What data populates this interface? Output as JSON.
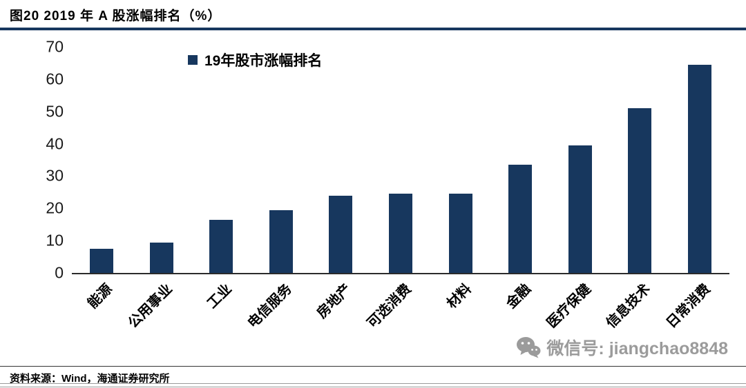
{
  "header": {
    "title": "图20 2019 年 A 股涨幅排名（%）"
  },
  "chart_data": {
    "type": "bar",
    "title": "图20 2019 年 A 股涨幅排名（%）",
    "legend": "19年股市涨幅排名",
    "legend_position": "top-center",
    "categories": [
      "能源",
      "公用事业",
      "工业",
      "电信服务",
      "房地产",
      "可选消费",
      "材料",
      "金融",
      "医疗保健",
      "信息技术",
      "日常消费"
    ],
    "values": [
      7.5,
      9.5,
      16.5,
      19.5,
      24,
      24.5,
      24.5,
      33.5,
      39.5,
      51,
      64.5
    ],
    "xlabel": "",
    "ylabel": "",
    "ylim": [
      0,
      70
    ],
    "yticks": [
      0,
      10,
      20,
      30,
      40,
      50,
      60,
      70
    ],
    "grid": false,
    "bar_color": "#17375E"
  },
  "watermark": {
    "icon": "wechat-icon",
    "text": "微信号: jiangchao8848",
    "color": "#9b9b9b"
  },
  "footer": {
    "source": "资料来源：Wind，海通证券研究所"
  },
  "colors": {
    "bar": "#17375E",
    "title_rule": "#17375E",
    "axis": "#2b2b2b"
  }
}
